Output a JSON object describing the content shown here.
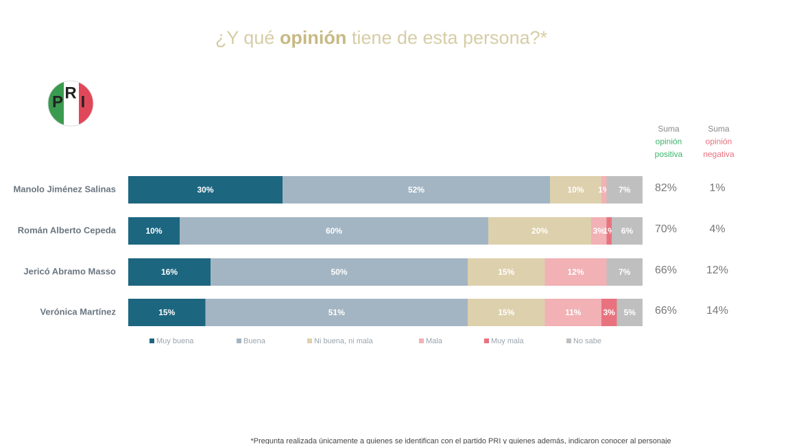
{
  "logo": {
    "letters": [
      "P",
      "R",
      "I"
    ]
  },
  "chart_data": {
    "type": "stacked-barh",
    "title_parts": [
      "¿Y qué ",
      "opinión",
      " tiene de esta persona?*"
    ],
    "categories": [
      "Manolo Jiménez Salinas",
      "Román Alberto Cepeda",
      "Jericó Abramo Masso",
      "Verónica Martínez"
    ],
    "xlim": [
      0,
      100
    ],
    "series": [
      {
        "name": "Muy buena",
        "color": "#1d6680",
        "values": [
          30,
          10,
          16,
          15
        ],
        "value_labels": [
          "30%",
          "10%",
          "16%",
          "15%"
        ]
      },
      {
        "name": "Buena",
        "color": "#a3b5c3",
        "values": [
          52,
          60,
          50,
          51
        ],
        "value_labels": [
          "52%",
          "60%",
          "50%",
          "51%"
        ]
      },
      {
        "name": "Ni buena, ni mala",
        "color": "#ddd0ac",
        "values": [
          10,
          20,
          15,
          15
        ],
        "value_labels": [
          "10%",
          "20%",
          "15%",
          "15%"
        ]
      },
      {
        "name": "Mala",
        "color": "#f1b1b5",
        "values": [
          1,
          3,
          12,
          11
        ],
        "value_labels": [
          "1%",
          "3%",
          "12%",
          "11%"
        ]
      },
      {
        "name": "Muy mala",
        "color": "#e8737f",
        "values": [
          0,
          1,
          0,
          3
        ],
        "value_labels": [
          null,
          "1%",
          null,
          "3%"
        ]
      },
      {
        "name": "No sabe",
        "color": "#bfbfbf",
        "values": [
          7,
          6,
          7,
          5
        ],
        "value_labels": [
          "7%",
          "6%",
          "7%",
          "5%"
        ]
      }
    ],
    "positive_sum": {
      "header": [
        "Suma",
        "opinión",
        "positiva"
      ],
      "values": [
        82,
        70,
        66,
        66
      ],
      "value_labels": [
        "82%",
        "70%",
        "66%",
        "66%"
      ]
    },
    "negative_sum": {
      "header": [
        "Suma",
        "opinión",
        "negativa"
      ],
      "values": [
        1,
        4,
        12,
        14
      ],
      "value_labels": [
        "1%",
        "4%",
        "12%",
        "14%"
      ]
    },
    "footnote": "*Pregunta realizada únicamente a quienes se identifican con el partido PRI y quienes además, indicaron conocer al personaje"
  }
}
